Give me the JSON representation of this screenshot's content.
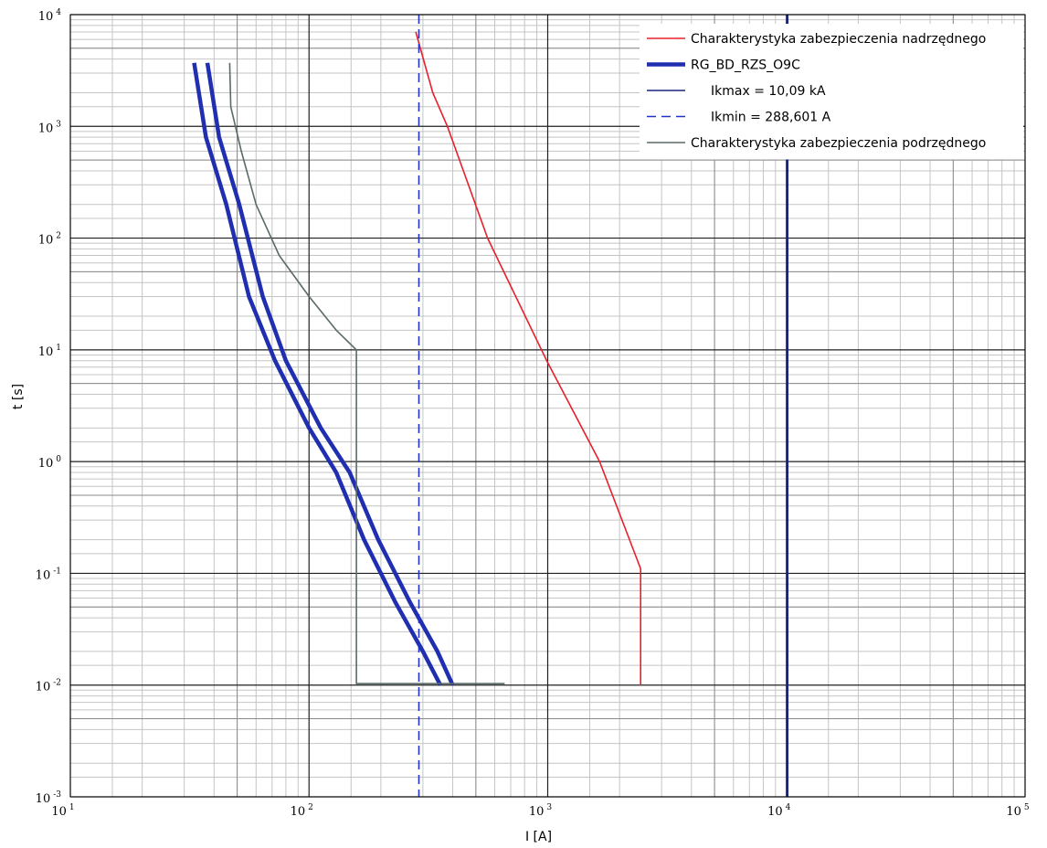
{
  "chart_data": {
    "type": "line",
    "xscale": "log",
    "yscale": "log",
    "xlim": [
      10,
      100000
    ],
    "ylim": [
      0.001,
      10000
    ],
    "xlabel": "I [A]",
    "ylabel": "t [s]",
    "xticks": [
      10,
      100,
      1000,
      10000,
      100000
    ],
    "yticks": [
      0.001,
      0.01,
      0.1,
      1,
      10,
      100,
      1000,
      10000
    ],
    "grid": true,
    "legend_position": "top-right",
    "series": [
      {
        "name": "Charakterystyka zabezpieczenia nadrzędnego",
        "color": "#e8202a",
        "style": "solid",
        "points": [
          [
            280,
            7000
          ],
          [
            330,
            2000
          ],
          [
            380,
            1000
          ],
          [
            560,
            100
          ],
          [
            990,
            8
          ],
          [
            1650,
            1
          ],
          [
            2450,
            0.11
          ],
          [
            2450,
            0.01
          ]
        ]
      },
      {
        "name": "RG_BD_RZS_O9C",
        "color": "#1f2fb0",
        "style": "thick",
        "curves": [
          [
            [
              33,
              3700
            ],
            [
              37,
              800
            ],
            [
              45,
              200
            ],
            [
              56,
              30
            ],
            [
              72,
              8
            ],
            [
              100,
              2
            ],
            [
              130,
              0.8
            ],
            [
              170,
              0.2
            ],
            [
              230,
              0.055
            ],
            [
              300,
              0.02
            ],
            [
              355,
              0.01
            ]
          ],
          [
            [
              37.5,
              3700
            ],
            [
              42,
              800
            ],
            [
              51,
              200
            ],
            [
              64,
              30
            ],
            [
              80,
              8
            ],
            [
              112,
              2
            ],
            [
              148,
              0.8
            ],
            [
              195,
              0.2
            ],
            [
              265,
              0.055
            ],
            [
              345,
              0.02
            ],
            [
              400,
              0.01
            ]
          ]
        ]
      },
      {
        "name": "Ikmax =  10,09 kA",
        "color": "#1a237e",
        "style": "solid-vertical",
        "x": 10090
      },
      {
        "name": "Ikmin =  288,601 A",
        "color": "#2233cc",
        "style": "dashed-vertical",
        "x": 288.601
      },
      {
        "name": "Charakterystyka zabezpieczenia podrzędnego",
        "color": "#5a6a6a",
        "style": "solid",
        "points": [
          [
            46.5,
            3700
          ],
          [
            47,
            1500
          ],
          [
            52,
            600
          ],
          [
            60,
            200
          ],
          [
            75,
            70
          ],
          [
            100,
            30
          ],
          [
            130,
            15
          ],
          [
            158,
            10
          ],
          [
            158,
            0.0103
          ],
          [
            660,
            0.0103
          ]
        ]
      }
    ]
  }
}
